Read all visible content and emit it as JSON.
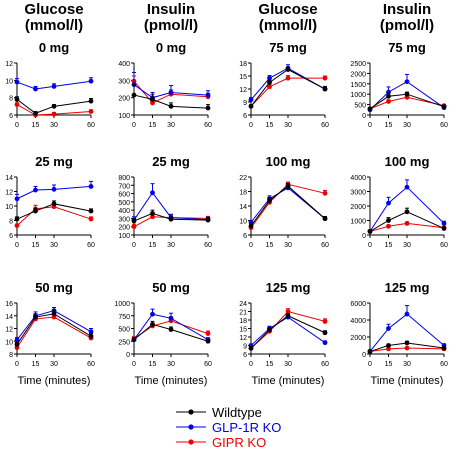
{
  "column_headers": [
    [
      "Glucose",
      "(mmol/l)"
    ],
    [
      "Insulin",
      "(pmol/l)"
    ],
    [
      "Glucose",
      "(mmol/l)"
    ],
    [
      "Insulin",
      "(pmol/l)"
    ]
  ],
  "xlabel": "Time (minutes)",
  "legend": [
    "Wildtype",
    "GLP-1R KO",
    "GIPR KO"
  ],
  "series_colors": [
    "#000000",
    "#0000ee",
    "#ee0000"
  ],
  "chart_data": [
    {
      "type": "line",
      "title": "0 mg",
      "x": [
        0,
        15,
        30,
        60
      ],
      "ylim": [
        6,
        12
      ],
      "yticks": [
        6,
        8,
        10,
        12
      ],
      "series": [
        {
          "name": "Wildtype",
          "values": [
            7.8,
            6.2,
            7.0,
            7.6
          ],
          "err": [
            0.3,
            0.2,
            0.2,
            0.3
          ]
        },
        {
          "name": "GLP-1R KO",
          "values": [
            9.8,
            9.0,
            9.3,
            9.9
          ],
          "err": [
            0.4,
            0.3,
            0.3,
            0.4
          ]
        },
        {
          "name": "GIPR KO",
          "values": [
            7.2,
            6.0,
            6.1,
            6.4
          ],
          "err": [
            0.2,
            0.2,
            0.2,
            0.2
          ]
        }
      ]
    },
    {
      "type": "line",
      "title": "0 mg",
      "x": [
        0,
        15,
        30,
        60
      ],
      "ylim": [
        100,
        400
      ],
      "yticks": [
        100,
        200,
        300,
        400
      ],
      "series": [
        {
          "name": "Wildtype",
          "values": [
            215,
            190,
            150,
            140
          ],
          "err": [
            60,
            30,
            20,
            20
          ]
        },
        {
          "name": "GLP-1R KO",
          "values": [
            275,
            200,
            230,
            215
          ],
          "err": [
            70,
            30,
            40,
            25
          ]
        },
        {
          "name": "GIPR KO",
          "values": [
            295,
            170,
            220,
            205
          ],
          "err": [
            30,
            20,
            25,
            20
          ]
        }
      ]
    },
    {
      "type": "line",
      "title": "75 mg",
      "x": [
        0,
        15,
        30,
        60
      ],
      "ylim": [
        6,
        18
      ],
      "yticks": [
        6,
        9,
        12,
        15,
        18
      ],
      "series": [
        {
          "name": "Wildtype",
          "values": [
            8.0,
            13.5,
            16.5,
            12.0
          ],
          "err": [
            0.4,
            0.6,
            0.5,
            0.5
          ]
        },
        {
          "name": "GLP-1R KO",
          "values": [
            9.5,
            14.5,
            16.8,
            12.0
          ],
          "err": [
            0.5,
            0.6,
            0.8,
            0.6
          ]
        },
        {
          "name": "GIPR KO",
          "values": [
            8.0,
            12.5,
            14.5,
            14.5
          ],
          "err": [
            0.3,
            0.6,
            0.6,
            0.5
          ]
        }
      ]
    },
    {
      "type": "line",
      "title": "75 mg",
      "x": [
        0,
        15,
        30,
        60
      ],
      "ylim": [
        0,
        2500
      ],
      "yticks": [
        0,
        500,
        1000,
        1500,
        2000,
        2500
      ],
      "series": [
        {
          "name": "Wildtype",
          "values": [
            300,
            900,
            1000,
            400
          ],
          "err": [
            50,
            150,
            100,
            60
          ]
        },
        {
          "name": "GLP-1R KO",
          "values": [
            250,
            1100,
            1600,
            350
          ],
          "err": [
            40,
            250,
            350,
            60
          ]
        },
        {
          "name": "GIPR KO",
          "values": [
            300,
            650,
            850,
            450
          ],
          "err": [
            50,
            80,
            80,
            50
          ]
        }
      ]
    },
    {
      "type": "line",
      "title": "25 mg",
      "x": [
        0,
        15,
        30,
        60
      ],
      "ylim": [
        6,
        14
      ],
      "yticks": [
        6,
        8,
        10,
        12,
        14
      ],
      "series": [
        {
          "name": "Wildtype",
          "values": [
            8.2,
            9.3,
            10.3,
            9.3
          ],
          "err": [
            0.3,
            0.4,
            0.4,
            0.3
          ]
        },
        {
          "name": "GLP-1R KO",
          "values": [
            11.0,
            12.2,
            12.3,
            12.7
          ],
          "err": [
            0.6,
            0.5,
            0.6,
            0.7
          ]
        },
        {
          "name": "GIPR KO",
          "values": [
            7.3,
            9.6,
            9.9,
            8.2
          ],
          "err": [
            0.2,
            0.5,
            0.4,
            0.3
          ]
        }
      ]
    },
    {
      "type": "line",
      "title": "25 mg",
      "x": [
        0,
        15,
        30,
        60
      ],
      "ylim": [
        100,
        800
      ],
      "yticks": [
        100,
        200,
        300,
        400,
        500,
        600,
        700,
        800
      ],
      "series": [
        {
          "name": "Wildtype",
          "values": [
            270,
            360,
            290,
            280
          ],
          "err": [
            30,
            40,
            30,
            25
          ]
        },
        {
          "name": "GLP-1R KO",
          "values": [
            280,
            610,
            310,
            285
          ],
          "err": [
            40,
            110,
            40,
            30
          ]
        },
        {
          "name": "GIPR KO",
          "values": [
            200,
            320,
            310,
            300
          ],
          "err": [
            30,
            35,
            30,
            25
          ]
        }
      ]
    },
    {
      "type": "line",
      "title": "100 mg",
      "x": [
        0,
        15,
        30,
        60
      ],
      "ylim": [
        6,
        22
      ],
      "yticks": [
        6,
        10,
        14,
        18,
        22
      ],
      "series": [
        {
          "name": "Wildtype",
          "values": [
            8.5,
            15.5,
            19.5,
            10.5
          ],
          "err": [
            0.5,
            0.8,
            0.7,
            0.6
          ]
        },
        {
          "name": "GLP-1R KO",
          "values": [
            9.5,
            16.0,
            19.0,
            10.5
          ],
          "err": [
            0.5,
            0.8,
            0.8,
            0.5
          ]
        },
        {
          "name": "GIPR KO",
          "values": [
            8.0,
            15.0,
            20.0,
            17.5
          ],
          "err": [
            0.4,
            0.7,
            0.6,
            0.8
          ]
        }
      ]
    },
    {
      "type": "line",
      "title": "100 mg",
      "x": [
        0,
        15,
        30,
        60
      ],
      "ylim": [
        0,
        4000
      ],
      "yticks": [
        0,
        1000,
        2000,
        3000,
        4000
      ],
      "series": [
        {
          "name": "Wildtype",
          "values": [
            250,
            1000,
            1600,
            450
          ],
          "err": [
            50,
            200,
            250,
            80
          ]
        },
        {
          "name": "GLP-1R KO",
          "values": [
            250,
            2200,
            3300,
            800
          ],
          "err": [
            50,
            400,
            500,
            150
          ]
        },
        {
          "name": "GIPR KO",
          "values": [
            250,
            600,
            800,
            500
          ],
          "err": [
            50,
            100,
            100,
            80
          ]
        }
      ]
    },
    {
      "type": "line",
      "title": "50 mg",
      "x": [
        0,
        15,
        30,
        60
      ],
      "ylim": [
        8,
        16
      ],
      "yticks": [
        8,
        10,
        12,
        14,
        16
      ],
      "series": [
        {
          "name": "Wildtype",
          "values": [
            9.5,
            13.8,
            14.3,
            10.8
          ],
          "err": [
            0.3,
            0.5,
            0.5,
            0.4
          ]
        },
        {
          "name": "GLP-1R KO",
          "values": [
            10.2,
            14.0,
            14.8,
            11.5
          ],
          "err": [
            0.4,
            0.6,
            0.5,
            0.5
          ]
        },
        {
          "name": "GIPR KO",
          "values": [
            9.0,
            13.5,
            13.8,
            10.5
          ],
          "err": [
            0.3,
            0.5,
            0.5,
            0.4
          ]
        }
      ]
    },
    {
      "type": "line",
      "title": "50 mg",
      "x": [
        0,
        15,
        30,
        60
      ],
      "ylim": [
        0,
        1000
      ],
      "yticks": [
        0,
        250,
        500,
        750,
        1000
      ],
      "series": [
        {
          "name": "Wildtype",
          "values": [
            280,
            580,
            480,
            250
          ],
          "err": [
            40,
            60,
            50,
            30
          ]
        },
        {
          "name": "GLP-1R KO",
          "values": [
            280,
            780,
            700,
            280
          ],
          "err": [
            40,
            100,
            100,
            40
          ]
        },
        {
          "name": "GIPR KO",
          "values": [
            300,
            550,
            650,
            400
          ],
          "err": [
            40,
            60,
            80,
            50
          ]
        }
      ]
    },
    {
      "type": "line",
      "title": "125 mg",
      "x": [
        0,
        15,
        30,
        60
      ],
      "ylim": [
        6,
        24
      ],
      "yticks": [
        6,
        9,
        12,
        15,
        18,
        21,
        24
      ],
      "series": [
        {
          "name": "Wildtype",
          "values": [
            8.0,
            14.5,
            19.5,
            13.5
          ],
          "err": [
            0.5,
            0.8,
            0.8,
            0.7
          ]
        },
        {
          "name": "GLP-1R KO",
          "values": [
            9.0,
            15.0,
            19.0,
            10.0
          ],
          "err": [
            0.5,
            0.8,
            0.9,
            0.6
          ]
        },
        {
          "name": "GIPR KO",
          "values": [
            8.0,
            14.0,
            21.0,
            17.5
          ],
          "err": [
            0.4,
            0.8,
            1.0,
            0.9
          ]
        }
      ]
    },
    {
      "type": "line",
      "title": "125 mg",
      "x": [
        0,
        15,
        30,
        60
      ],
      "ylim": [
        0,
        6000
      ],
      "yticks": [
        0,
        2000,
        4000,
        6000
      ],
      "series": [
        {
          "name": "Wildtype",
          "values": [
            300,
            1000,
            1300,
            700
          ],
          "err": [
            60,
            150,
            200,
            100
          ]
        },
        {
          "name": "GLP-1R KO",
          "values": [
            300,
            3000,
            4700,
            1000
          ],
          "err": [
            60,
            500,
            1000,
            200
          ]
        },
        {
          "name": "GIPR KO",
          "values": [
            300,
            600,
            700,
            600
          ],
          "err": [
            50,
            100,
            100,
            100
          ]
        }
      ]
    }
  ]
}
